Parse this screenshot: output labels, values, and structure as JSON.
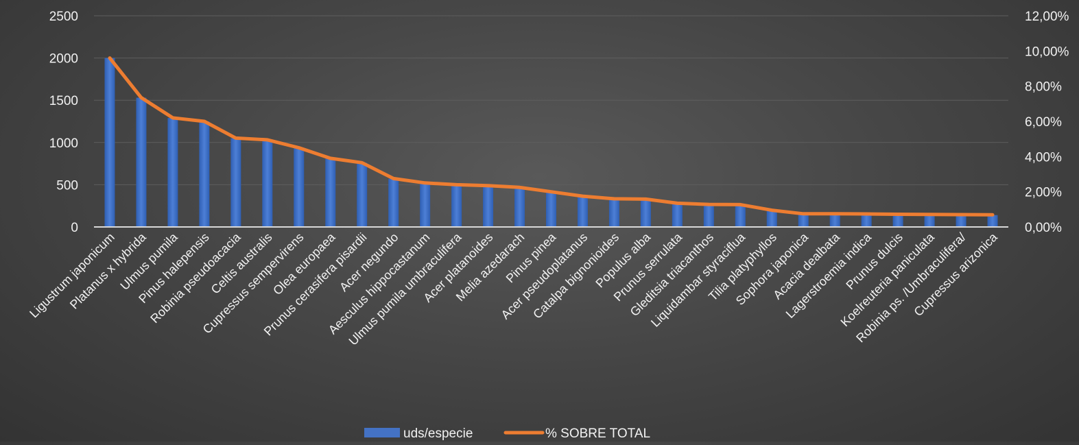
{
  "chart_data": {
    "type": "bar",
    "title": "",
    "categories": [
      "Ligustrum japonicum",
      "Platanus x hybrida",
      "Ulmus pumila",
      "Pinus halepensis",
      "Robinia pseudoacacia",
      "Celtis australis",
      "Cupressus sempervirens",
      "Olea europaea",
      "Prunus cerasifera pisardii",
      "Acer negundo",
      "Aesculus hippocastanum",
      "Ulmus pumila umbraculifera",
      "Acer platanoides",
      "Melia azedarach",
      "Pinus pinea",
      "Acer pseudoplatanus",
      "Catalpa bignonioides",
      "Populus alba",
      "Prunus serrulata",
      "Gleditsia triacanthos",
      "Liquidambar styraciflua",
      "Tilia platyphyllos",
      "Sophora japonica",
      "Acacia dealbata",
      "Lagerstroemia indica",
      "Prunus dulcis",
      "Koelreuteria paniculata",
      "Robinia ps. /Umbraculifera/",
      "Cupressus arizonica"
    ],
    "series": [
      {
        "name": "uds/especie",
        "type": "bar",
        "axis": "left",
        "color": "#4472C4",
        "values": [
          2000,
          1530,
          1290,
          1250,
          1050,
          1030,
          940,
          810,
          760,
          570,
          520,
          500,
          490,
          470,
          420,
          360,
          330,
          330,
          280,
          265,
          265,
          200,
          160,
          160,
          155,
          150,
          150,
          145,
          140
        ]
      },
      {
        "name": "% SOBRE TOTAL",
        "type": "line",
        "axis": "right",
        "color": "#ED7D31",
        "values": [
          9.6,
          7.35,
          6.2,
          6.0,
          5.05,
          4.95,
          4.5,
          3.9,
          3.65,
          2.75,
          2.5,
          2.4,
          2.35,
          2.25,
          2.0,
          1.75,
          1.6,
          1.58,
          1.35,
          1.28,
          1.27,
          0.95,
          0.75,
          0.75,
          0.74,
          0.72,
          0.71,
          0.7,
          0.69
        ]
      }
    ],
    "y_left": {
      "min": 0,
      "max": 2500,
      "ticks": [
        "0",
        "500",
        "1000",
        "1500",
        "2000",
        "2500"
      ]
    },
    "y_right": {
      "min": 0,
      "max": 12,
      "ticks": [
        "0,00%",
        "2,00%",
        "4,00%",
        "6,00%",
        "8,00%",
        "10,00%",
        "12,00%"
      ]
    },
    "grid": true,
    "legend": "bottom-center",
    "legend_labels": [
      "uds/especie",
      "% SOBRE TOTAL"
    ],
    "gridline_color": "#5e5e5e",
    "background_color": "#474747",
    "text_color": "#f2f2f2"
  }
}
